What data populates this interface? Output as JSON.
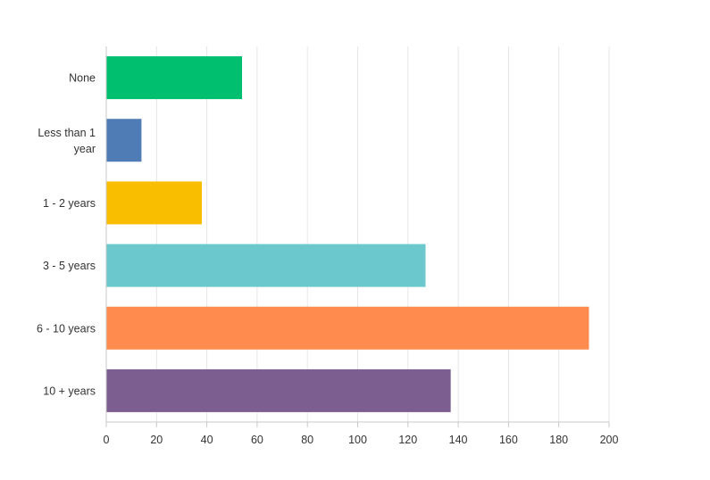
{
  "chart_data": {
    "type": "bar",
    "orientation": "horizontal",
    "title": "",
    "xlabel": "",
    "ylabel": "",
    "categories": [
      [
        "None"
      ],
      [
        "Less than 1",
        "year"
      ],
      [
        "1 - 2 years"
      ],
      [
        "3 - 5 years"
      ],
      [
        "6 - 10 years"
      ],
      [
        "10 + years"
      ]
    ],
    "values": [
      54,
      14,
      38,
      127,
      192,
      137
    ],
    "colors": [
      "#00bf6f",
      "#507cb6",
      "#f9be00",
      "#6bc8cd",
      "#ff8b4f",
      "#7d5e90"
    ],
    "xlim": [
      0,
      200
    ],
    "xticks": [
      0,
      20,
      40,
      60,
      80,
      100,
      120,
      140,
      160,
      180,
      200
    ],
    "grid": "vertical",
    "legend": "none"
  }
}
